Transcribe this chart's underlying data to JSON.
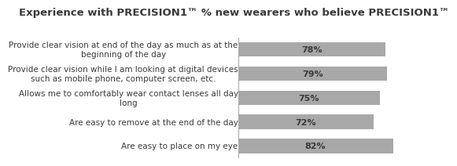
{
  "title": "Experience with PRECISION1™ % new wearers who believe PRECISION1™",
  "categories": [
    "Provide clear vision at end of the day as much as at the\nbeginning of the day",
    "Provide clear vision while I am looking at digital devices\nsuch as mobile phone, computer screen, etc.",
    "Allows me to comfortably wear contact lenses all day\nlong",
    "Are easy to remove at the end of the day",
    "Are easy to place on my eye"
  ],
  "values": [
    78,
    79,
    75,
    72,
    82
  ],
  "bar_color": "#a8a8a8",
  "label_color": "#3a3a3a",
  "title_fontsize": 9.5,
  "bar_label_fontsize": 8,
  "cat_fontsize": 7.5,
  "background_color": "#ffffff",
  "xlim": [
    0,
    100
  ],
  "bar_height": 0.6,
  "divider_color": "#aaaaaa"
}
